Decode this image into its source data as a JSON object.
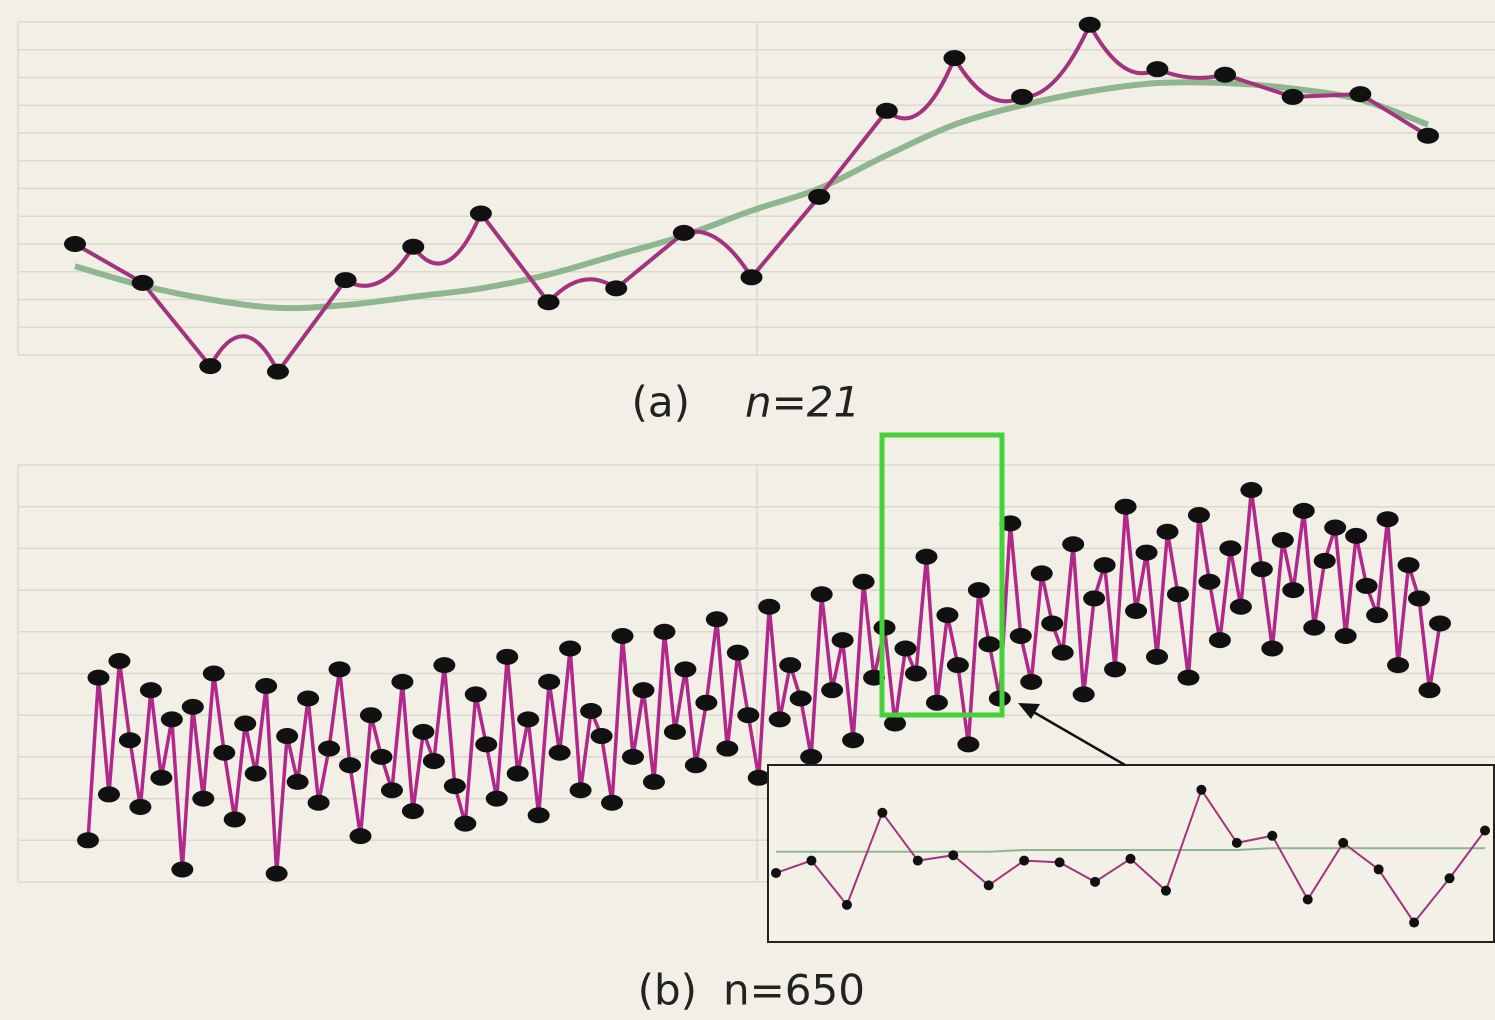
{
  "chart_data": [
    {
      "type": "line",
      "caption": "(a)",
      "caption_n": "n=21",
      "ylim": [
        0,
        12
      ],
      "grid": true,
      "series": [
        {
          "color": "#8fb68e",
          "smooth": true,
          "values": [
            3.2,
            2.5,
            2.0,
            1.7,
            1.8,
            2.1,
            2.4,
            2.9,
            3.6,
            4.3,
            5.2,
            6.0,
            7.2,
            8.3,
            9.0,
            9.5,
            9.8,
            9.8,
            9.6,
            9.2,
            8.3
          ]
        },
        {
          "color": "#a3337f",
          "cusp": true,
          "markers": true,
          "values": [
            4.0,
            2.6,
            -0.4,
            -0.6,
            2.7,
            3.9,
            5.1,
            1.9,
            2.4,
            4.4,
            2.8,
            5.7,
            8.8,
            10.7,
            9.3,
            11.9,
            10.3,
            10.1,
            9.3,
            9.4,
            7.9
          ]
        }
      ]
    },
    {
      "type": "line",
      "caption": "(b)",
      "caption_n": "n=650",
      "ylim": [
        0,
        10
      ],
      "grid": true,
      "series": [
        {
          "color": "#b0288a",
          "markers": true,
          "values": [
            1.0,
            4.9,
            2.1,
            5.3,
            3.4,
            1.8,
            4.6,
            2.5,
            3.9,
            0.3,
            4.2,
            2.0,
            5.0,
            3.1,
            1.5,
            3.8,
            2.6,
            4.7,
            0.2,
            3.5,
            2.4,
            4.4,
            1.9,
            3.2,
            5.1,
            2.8,
            1.1,
            4.0,
            3.0,
            2.2,
            4.8,
            1.7,
            3.6,
            2.9,
            5.2,
            2.3,
            1.4,
            4.5,
            3.3,
            2.0,
            5.4,
            2.6,
            3.9,
            1.6,
            4.8,
            3.1,
            5.6,
            2.2,
            4.1,
            3.5,
            1.9,
            5.9,
            3.0,
            4.6,
            2.4,
            6.0,
            3.6,
            5.1,
            2.8,
            4.3,
            6.3,
            3.2,
            5.5,
            4.0,
            2.5,
            6.6,
            3.9,
            5.2,
            4.4,
            3.0,
            6.9,
            4.6,
            5.8,
            3.4,
            7.2,
            4.9,
            6.1,
            3.8,
            5.6,
            5.0,
            7.8,
            4.3,
            6.4,
            5.2,
            3.3,
            7.0,
            5.7,
            4.4,
            8.6,
            5.9,
            4.8,
            7.4,
            6.2,
            5.5,
            8.1,
            4.5,
            6.8,
            7.6,
            5.1,
            9.0,
            6.5,
            7.9,
            5.4,
            8.4,
            6.9,
            4.9,
            8.8,
            7.2,
            5.8,
            8.0,
            6.6,
            9.4,
            7.5,
            5.6,
            8.2,
            7.0,
            8.9,
            6.1,
            7.7,
            8.5,
            5.9,
            8.3,
            7.1,
            6.4,
            8.7,
            5.2,
            7.6,
            6.8,
            4.6,
            6.2
          ]
        }
      ]
    },
    {
      "type": "line",
      "ylim": [
        0,
        10
      ],
      "grid": false,
      "series": [
        {
          "color": "#8fb68e",
          "values": [
            5.1,
            5.1,
            5.1,
            5.1,
            5.1,
            5.1,
            5.1,
            5.2,
            5.2,
            5.2,
            5.2,
            5.2,
            5.2,
            5.2,
            5.3,
            5.3,
            5.3,
            5.3,
            5.3,
            5.3,
            5.3
          ]
        },
        {
          "color": "#a3337f",
          "markers": true,
          "values": [
            3.9,
            4.6,
            2.1,
            7.3,
            4.6,
            4.9,
            3.2,
            4.6,
            4.5,
            3.4,
            4.7,
            2.9,
            8.6,
            5.6,
            6.0,
            2.4,
            5.6,
            4.1,
            1.1,
            3.6,
            6.3
          ]
        }
      ]
    }
  ]
}
